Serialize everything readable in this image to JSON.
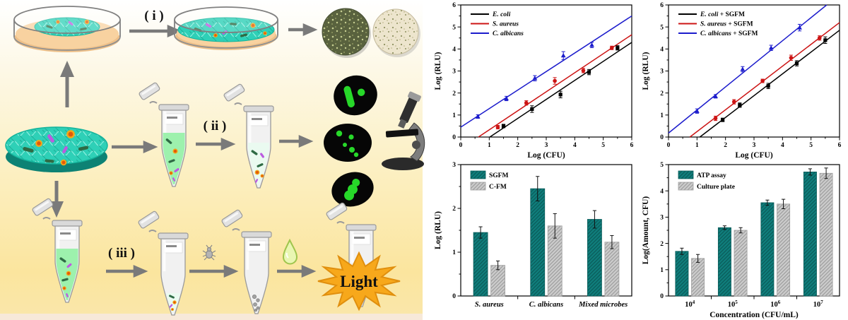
{
  "diagram": {
    "step1_label": "( i )",
    "step2_label": "( ii )",
    "step3_label": "( iii )",
    "light_label": "Light",
    "colors": {
      "film_teal": "#2ed0b7",
      "agar_peach": "#f8d2a0",
      "burst_orange": "#f7a81b",
      "arrow_gray": "#7a7a7a",
      "fluorescent_green": "#27d829"
    }
  },
  "chart_data": [
    {
      "type": "line",
      "title": "",
      "xlabel": "Log (CFU)",
      "ylabel": "Log (RLU)",
      "xlim": [
        0,
        6
      ],
      "ylim": [
        0,
        6
      ],
      "xticks": [
        0,
        1,
        2,
        3,
        4,
        5,
        6
      ],
      "yticks": [
        0,
        1,
        2,
        3,
        4,
        5,
        6
      ],
      "grid": false,
      "legend_position": "top-left",
      "series": [
        {
          "name": "E. coli",
          "suffix": "",
          "color": "#000000",
          "marker": "square",
          "x": [
            1.5,
            2.5,
            3.5,
            4.5,
            5.5
          ],
          "y": [
            0.5,
            1.27,
            1.93,
            2.95,
            4.05
          ],
          "yerr": [
            0.08,
            0.15,
            0.15,
            0.12,
            0.1
          ],
          "fit_x": [
            1.02,
            6
          ],
          "fit_y": [
            0,
            4.3
          ]
        },
        {
          "name": "S. aureus",
          "suffix": "",
          "color": "#cc1414",
          "marker": "circle",
          "x": [
            1.3,
            2.3,
            3.3,
            4.3,
            5.3
          ],
          "y": [
            0.45,
            1.55,
            2.55,
            3.02,
            4.05
          ],
          "yerr": [
            0.08,
            0.1,
            0.15,
            0.1,
            0.08
          ],
          "fit_x": [
            0.62,
            6
          ],
          "fit_y": [
            0,
            4.65
          ]
        },
        {
          "name": "C. albicans",
          "suffix": "",
          "color": "#1c1ccc",
          "marker": "triangle",
          "x": [
            0.6,
            1.6,
            2.6,
            3.6,
            4.6
          ],
          "y": [
            0.93,
            1.75,
            2.67,
            3.7,
            4.18
          ],
          "yerr": [
            0.08,
            0.1,
            0.12,
            0.18,
            0.12
          ],
          "fit_x": [
            0,
            6
          ],
          "fit_y": [
            0.45,
            5.5
          ]
        }
      ]
    },
    {
      "type": "line",
      "title": "",
      "xlabel": "Log (CFU)",
      "ylabel": "Log (RLU)",
      "xlim": [
        0,
        6
      ],
      "ylim": [
        0,
        6
      ],
      "xticks": [
        0,
        1,
        2,
        3,
        4,
        5,
        6
      ],
      "yticks": [
        0,
        1,
        2,
        3,
        4,
        5,
        6
      ],
      "grid": false,
      "legend_position": "top-left",
      "series": [
        {
          "name": "E. coli",
          "suffix": " + SGFM",
          "color": "#000000",
          "marker": "square",
          "x": [
            1.9,
            2.5,
            3.5,
            4.5,
            5.5
          ],
          "y": [
            0.78,
            1.45,
            2.32,
            3.35,
            4.4
          ],
          "yerr": [
            0.08,
            0.1,
            0.12,
            0.12,
            0.15
          ],
          "fit_x": [
            1.1,
            6
          ],
          "fit_y": [
            0,
            4.85
          ]
        },
        {
          "name": "S. aureus",
          "suffix": " + SGFM",
          "color": "#cc1414",
          "marker": "circle",
          "x": [
            1.65,
            2.3,
            3.3,
            4.3,
            5.3
          ],
          "y": [
            0.85,
            1.6,
            2.55,
            3.6,
            4.5
          ],
          "yerr": [
            0.1,
            0.1,
            0.08,
            0.12,
            0.1
          ],
          "fit_x": [
            0.75,
            6
          ],
          "fit_y": [
            0,
            5.2
          ]
        },
        {
          "name": "C. albicans",
          "suffix": " + SGFM",
          "color": "#1c1ccc",
          "marker": "triangle",
          "x": [
            1.0,
            1.65,
            2.6,
            3.6,
            4.6
          ],
          "y": [
            1.18,
            1.85,
            3.08,
            4.05,
            4.97
          ],
          "yerr": [
            0.1,
            0.08,
            0.12,
            0.12,
            0.15
          ],
          "fit_x": [
            0,
            5.55
          ],
          "fit_y": [
            0.18,
            6
          ]
        }
      ]
    },
    {
      "type": "bar",
      "title": "",
      "xlabel": "",
      "ylabel": "Log (RLU)",
      "ylim": [
        0,
        3
      ],
      "yticks": [
        0,
        1,
        2,
        3
      ],
      "grid": false,
      "legend_position": "top-left",
      "categories": [
        "S. aureus",
        "C. albicans",
        "Mixed microbes"
      ],
      "categories_italic": true,
      "series": [
        {
          "name": "SGFM",
          "color": "#0f7e7c",
          "hatch": "#0a5c5a",
          "values": [
            1.45,
            2.45,
            1.75
          ],
          "yerr": [
            0.13,
            0.28,
            0.2
          ]
        },
        {
          "name": "C-FM",
          "color": "#cccccc",
          "hatch": "#9f9f9f",
          "values": [
            0.7,
            1.6,
            1.23
          ],
          "yerr": [
            0.1,
            0.28,
            0.15
          ]
        }
      ]
    },
    {
      "type": "bar",
      "title": "",
      "xlabel": "Concentration (CFU/mL)",
      "ylabel": "Log(Amount, CFU)",
      "ylim": [
        0,
        5
      ],
      "yticks": [
        0,
        1,
        2,
        3,
        4,
        5
      ],
      "grid": false,
      "legend_position": "top-left",
      "categories": [
        "10^4",
        "10^5",
        "10^6",
        "10^7"
      ],
      "categories_italic": false,
      "series": [
        {
          "name": "ATP assay",
          "color": "#0f7e7c",
          "hatch": "#0a5c5a",
          "values": [
            1.7,
            2.6,
            3.55,
            4.72
          ],
          "yerr": [
            0.12,
            0.07,
            0.1,
            0.12
          ]
        },
        {
          "name": "Culture plate",
          "color": "#cccccc",
          "hatch": "#9f9f9f",
          "values": [
            1.43,
            2.5,
            3.5,
            4.67
          ],
          "yerr": [
            0.15,
            0.1,
            0.18,
            0.2
          ]
        }
      ]
    }
  ]
}
